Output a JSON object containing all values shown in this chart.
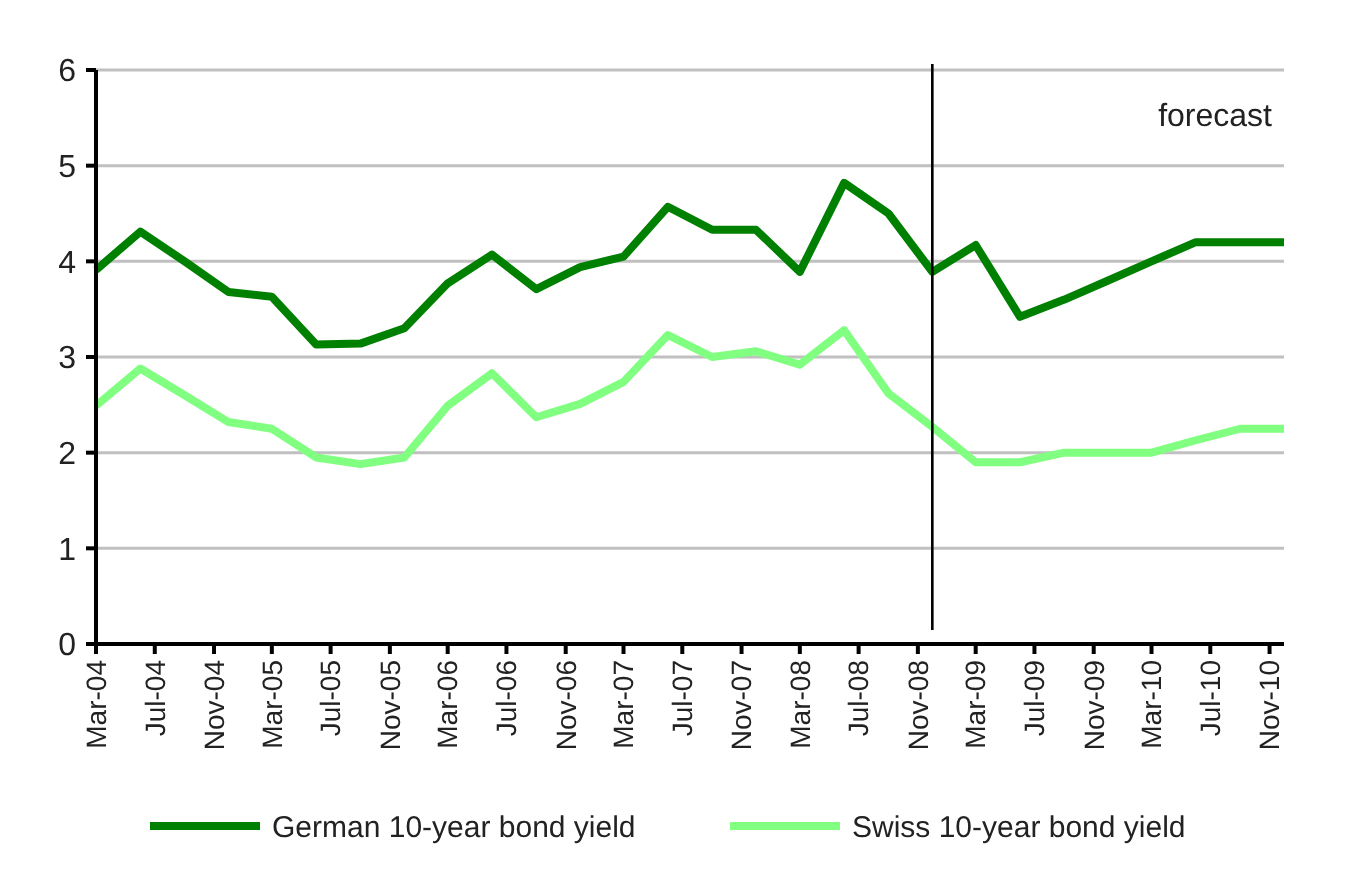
{
  "chart_data": {
    "type": "line",
    "x": [
      "2004-03",
      "2004-06",
      "2004-09",
      "2004-12",
      "2005-03",
      "2005-06",
      "2005-09",
      "2005-12",
      "2006-03",
      "2006-06",
      "2006-09",
      "2006-12",
      "2007-03",
      "2007-06",
      "2007-09",
      "2007-12",
      "2008-03",
      "2008-06",
      "2008-09",
      "2008-12",
      "2009-03",
      "2009-06",
      "2009-09",
      "2009-12",
      "2010-03",
      "2010-06",
      "2010-09",
      "2010-12"
    ],
    "series": [
      {
        "name": "German 10-year bond yield",
        "color": "#008000",
        "values": [
          3.91,
          4.31,
          4.0,
          3.68,
          3.63,
          3.13,
          3.14,
          3.3,
          3.77,
          4.07,
          3.71,
          3.94,
          4.05,
          4.57,
          4.33,
          4.33,
          3.89,
          4.82,
          4.5,
          3.89,
          4.17,
          3.42,
          3.6,
          3.8,
          4.0,
          4.2,
          4.2,
          4.2
        ]
      },
      {
        "name": "Swiss 10-year bond yield",
        "color": "#80ff80",
        "values": [
          2.49,
          2.88,
          2.6,
          2.32,
          2.25,
          1.95,
          1.88,
          1.95,
          2.49,
          2.83,
          2.37,
          2.51,
          2.74,
          3.23,
          3.0,
          3.06,
          2.92,
          3.28,
          2.62,
          2.27,
          1.9,
          1.9,
          2.0,
          2.0,
          2.0,
          2.13,
          2.25,
          2.25
        ]
      }
    ],
    "xlim": [
      "2004-03",
      "2010-12"
    ],
    "xticks": [
      {
        "value": "2004-03",
        "label": "Mar-04"
      },
      {
        "value": "2004-07",
        "label": "Jul-04"
      },
      {
        "value": "2004-11",
        "label": "Nov-04"
      },
      {
        "value": "2005-03",
        "label": "Mar-05"
      },
      {
        "value": "2005-07",
        "label": "Jul-05"
      },
      {
        "value": "2005-11",
        "label": "Nov-05"
      },
      {
        "value": "2006-03",
        "label": "Mar-06"
      },
      {
        "value": "2006-07",
        "label": "Jul-06"
      },
      {
        "value": "2006-11",
        "label": "Nov-06"
      },
      {
        "value": "2007-03",
        "label": "Mar-07"
      },
      {
        "value": "2007-07",
        "label": "Jul-07"
      },
      {
        "value": "2007-11",
        "label": "Nov-07"
      },
      {
        "value": "2008-03",
        "label": "Mar-08"
      },
      {
        "value": "2008-07",
        "label": "Jul-08"
      },
      {
        "value": "2008-11",
        "label": "Nov-08"
      },
      {
        "value": "2009-03",
        "label": "Mar-09"
      },
      {
        "value": "2009-07",
        "label": "Jul-09"
      },
      {
        "value": "2009-11",
        "label": "Nov-09"
      },
      {
        "value": "2010-03",
        "label": "Mar-10"
      },
      {
        "value": "2010-07",
        "label": "Jul-10"
      },
      {
        "value": "2010-11",
        "label": "Nov-10"
      }
    ],
    "ylim": [
      0,
      6
    ],
    "yticks": [
      0,
      1,
      2,
      3,
      4,
      5,
      6
    ],
    "grid": "y",
    "legend": "bottom",
    "marker": "none",
    "line_style": "solid",
    "ref_lines": [
      {
        "axis": "x",
        "value": "2008-12",
        "color": "#000000"
      }
    ],
    "annotations": [
      "forecast"
    ]
  }
}
